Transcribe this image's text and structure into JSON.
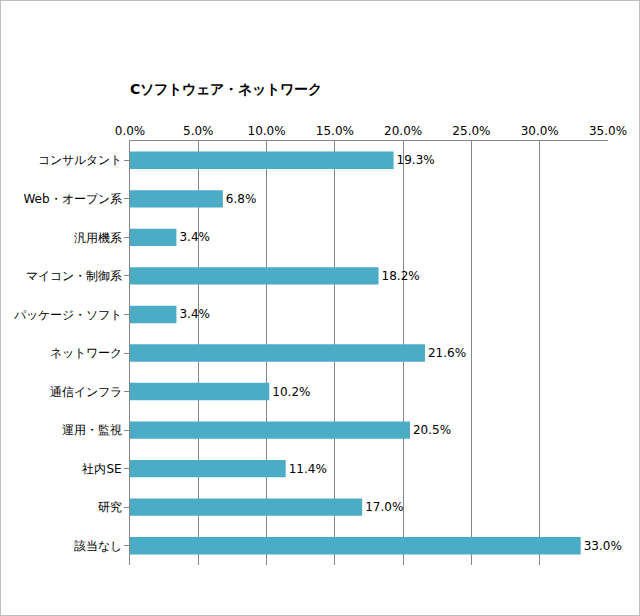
{
  "chart_data": {
    "type": "bar",
    "title": "Cソフトウェア・ネットワーク",
    "orientation": "horizontal",
    "categories": [
      "コンサルタント",
      "Web・オープン系",
      "汎用機系",
      "マイコン・制御系",
      "パッケージ・ソフト",
      "ネットワーク",
      "通信インフラ",
      "運用・監視",
      "社内SE",
      "研究",
      "該当なし"
    ],
    "values": [
      19.3,
      6.8,
      3.4,
      18.2,
      3.4,
      21.6,
      10.2,
      20.5,
      11.4,
      17.0,
      33.0
    ],
    "value_labels": [
      "19.3%",
      "6.8%",
      "3.4%",
      "18.2%",
      "3.4%",
      "21.6%",
      "10.2%",
      "20.5%",
      "11.4%",
      "17.0%",
      "33.0%"
    ],
    "data_labels": true,
    "color": "#4bacc6",
    "xlim": [
      0,
      35
    ],
    "xticks": [
      {
        "value": 0,
        "label": "0.0%"
      },
      {
        "value": 5,
        "label": "5.0%"
      },
      {
        "value": 10,
        "label": "10.0%"
      },
      {
        "value": 15,
        "label": "15.0%"
      },
      {
        "value": 20,
        "label": "20.0%"
      },
      {
        "value": 25,
        "label": "25.0%"
      },
      {
        "value": 30,
        "label": "30.0%"
      },
      {
        "value": 35,
        "label": "35.0%"
      }
    ],
    "grid": true
  }
}
